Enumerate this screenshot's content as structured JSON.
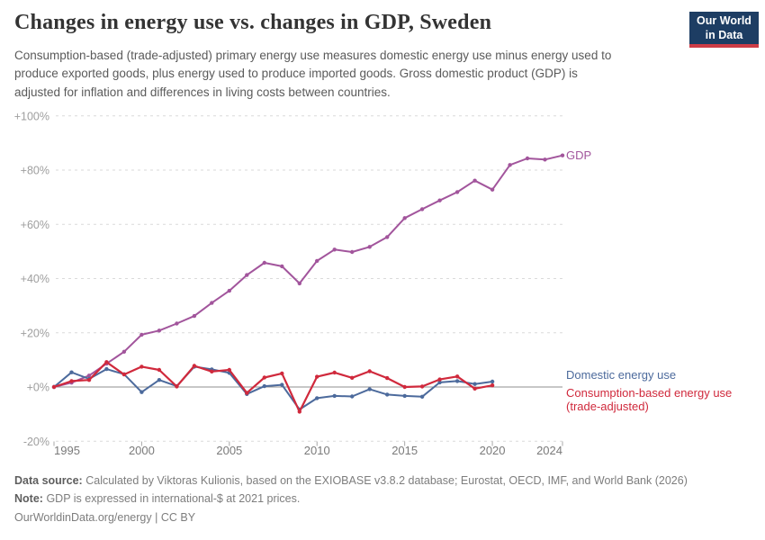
{
  "header": {
    "title": "Changes in energy use vs. changes in GDP, Sweden",
    "subtitle_lines": [
      "Consumption-based (trade-adjusted) primary energy use measures domestic energy use minus energy used to",
      "produce exported goods, plus energy used to produce imported goods. Gross domestic product (GDP) is",
      "adjusted for inflation and differences in living costs between countries."
    ],
    "logo": {
      "line1": "Our World",
      "line2": "in Data"
    }
  },
  "chart_data": {
    "type": "line",
    "title": "Changes in energy use vs. changes in GDP, Sweden",
    "xlabel": "",
    "ylabel": "",
    "grid": true,
    "legend_position": "direct-labels-right",
    "xlim": [
      1995,
      2024
    ],
    "ylim": [
      -20,
      100
    ],
    "x_ticks": [
      1995,
      2000,
      2005,
      2010,
      2015,
      2020,
      2024
    ],
    "y_ticks": [
      {
        "value": 100,
        "label": "+100%"
      },
      {
        "value": 80,
        "label": "+80%"
      },
      {
        "value": 60,
        "label": "+60%"
      },
      {
        "value": 40,
        "label": "+40%"
      },
      {
        "value": 20,
        "label": "+20%"
      },
      {
        "value": 0,
        "label": "+0%"
      },
      {
        "value": -20,
        "label": "-20%"
      }
    ],
    "series": [
      {
        "id": "gdp",
        "name": "GDP",
        "label_lines": [
          "GDP"
        ],
        "color": "#a2559c",
        "start_year": 1995,
        "values": [
          0,
          1.6,
          4.2,
          8.6,
          13.0,
          19.3,
          20.8,
          23.4,
          26.2,
          31.0,
          35.5,
          41.3,
          45.8,
          44.5,
          38.2,
          46.5,
          50.7,
          49.8,
          51.7,
          55.3,
          62.3,
          65.6,
          68.8,
          71.9,
          76.1,
          72.8,
          81.9,
          84.3,
          83.9,
          85.4
        ]
      },
      {
        "id": "domestic",
        "name": "Domestic energy use",
        "label_lines": [
          "Domestic energy use"
        ],
        "color": "#4c6a9c",
        "start_year": 1995,
        "values": [
          0,
          5.4,
          3.0,
          6.6,
          4.7,
          -1.9,
          2.6,
          0.3,
          7.5,
          6.5,
          5.2,
          -2.6,
          0.3,
          0.8,
          -8.3,
          -4.1,
          -3.3,
          -3.5,
          -0.8,
          -2.8,
          -3.3,
          -3.6,
          1.7,
          2.2,
          1.1,
          2.0
        ]
      },
      {
        "id": "consumption",
        "name": "Consumption-based energy use (trade-adjusted)",
        "label_lines": [
          "Consumption-based energy use",
          "(trade-adjusted)"
        ],
        "color": "#d0293c",
        "start_year": 1995,
        "values": [
          0,
          2.2,
          2.6,
          9.2,
          4.6,
          7.5,
          6.3,
          0.2,
          7.8,
          5.7,
          6.3,
          -2.2,
          3.5,
          5.0,
          -9.1,
          3.8,
          5.3,
          3.4,
          5.8,
          3.3,
          0.0,
          0.2,
          2.8,
          3.9,
          -0.6,
          0.6
        ]
      }
    ]
  },
  "footer": {
    "datasource_label": "Data source:",
    "datasource_text": "Calculated by Viktoras Kulionis, based on the EXIOBASE v3.8.2 database; Eurostat, OECD, IMF, and World Bank (2026)",
    "note_label": "Note:",
    "note_text": "GDP is expressed in international-$ at 2021 prices.",
    "url": "OurWorldinData.org/energy",
    "divider": "|",
    "license": "CC BY"
  }
}
